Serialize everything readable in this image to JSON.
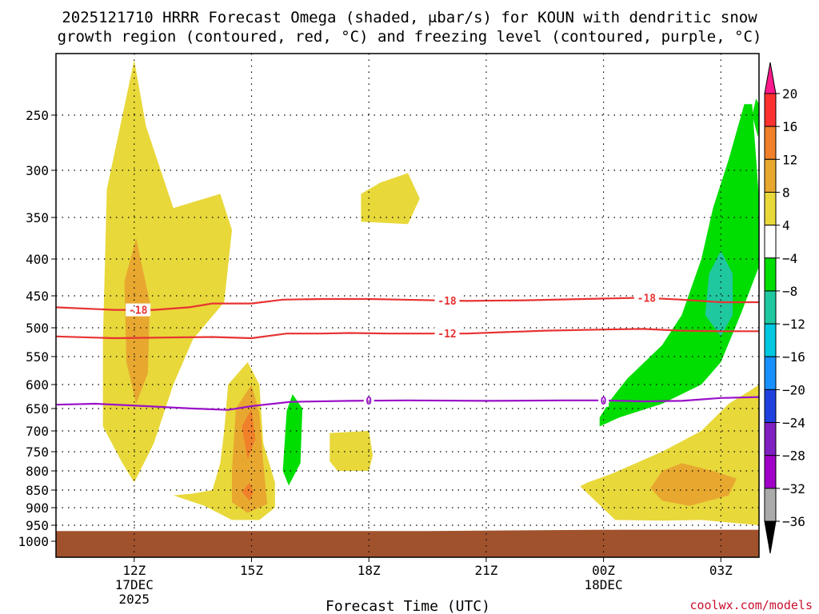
{
  "chart_data": {
    "type": "heatmap",
    "title_line1": "2025121710 HRRR Forecast Omega (shaded, μbar/s) for KOUN with dendritic snow",
    "title_line2": "growth region (contoured, red, °C) and freezing level (contoured, purple, °C)",
    "xlabel": "Forecast Time (UTC)",
    "credit": "coolwx.com/models",
    "x_ticks": [
      {
        "hour": 12,
        "lines": [
          "12Z",
          "17DEC",
          "2025"
        ]
      },
      {
        "hour": 15,
        "lines": [
          "15Z"
        ]
      },
      {
        "hour": 18,
        "lines": [
          "18Z"
        ]
      },
      {
        "hour": 21,
        "lines": [
          "21Z"
        ]
      },
      {
        "hour": 24,
        "lines": [
          "00Z",
          "18DEC"
        ]
      },
      {
        "hour": 27,
        "lines": [
          "03Z"
        ]
      }
    ],
    "x_range": [
      10,
      28
    ],
    "y_levels": [
      250,
      300,
      350,
      400,
      450,
      500,
      550,
      600,
      650,
      700,
      750,
      800,
      850,
      900,
      950,
      1000
    ],
    "colorbar": {
      "labels": [
        "20",
        "16",
        "12",
        "8",
        "4",
        "−4",
        "−8",
        "−12",
        "−16",
        "−20",
        "−24",
        "−28",
        "−32",
        "−36"
      ],
      "colors": [
        "#ff1a8c",
        "#ff3030",
        "#f0802a",
        "#e8a830",
        "#e8d83a",
        "#ffffff",
        "#00dd00",
        "#20c8a0",
        "#00c8e0",
        "#1890ff",
        "#2040e0",
        "#8020c0",
        "#a000c8",
        "#aaaaaa",
        "#000000"
      ]
    },
    "omega_regions": [
      {
        "name": "yellow-12z-upper",
        "bin": "4 to 8",
        "color": "#e8d83a",
        "points": [
          [
            11.2,
            690
          ],
          [
            11.7,
            780
          ],
          [
            12.0,
            830
          ],
          [
            12.5,
            730
          ],
          [
            13.0,
            600
          ],
          [
            13.5,
            520
          ],
          [
            14.3,
            460
          ],
          [
            14.5,
            365
          ],
          [
            14.2,
            325
          ],
          [
            13.0,
            340
          ],
          [
            12.3,
            260
          ],
          [
            12.0,
            195
          ],
          [
            11.3,
            320
          ],
          [
            11.2,
            520
          ]
        ]
      },
      {
        "name": "orange-12z-upper",
        "bin": "8 to 12",
        "color": "#e8a830",
        "points": [
          [
            11.75,
            430
          ],
          [
            11.8,
            560
          ],
          [
            12.05,
            640
          ],
          [
            12.35,
            580
          ],
          [
            12.4,
            460
          ],
          [
            12.05,
            375
          ]
        ]
      },
      {
        "name": "yellow-18z-upper",
        "bin": "4 to 8",
        "color": "#e8d83a",
        "points": [
          [
            17.8,
            325
          ],
          [
            17.8,
            355
          ],
          [
            19.0,
            358
          ],
          [
            19.3,
            330
          ],
          [
            19.0,
            303
          ],
          [
            18.3,
            313
          ]
        ]
      },
      {
        "name": "yellow-15z-low",
        "bin": "4 to 8",
        "color": "#e8d83a",
        "points": [
          [
            13.0,
            865
          ],
          [
            13.8,
            895
          ],
          [
            14.5,
            935
          ],
          [
            15.2,
            935
          ],
          [
            15.6,
            900
          ],
          [
            15.6,
            830
          ],
          [
            15.3,
            730
          ],
          [
            15.2,
            600
          ],
          [
            14.9,
            560
          ],
          [
            14.4,
            600
          ],
          [
            14.3,
            700
          ],
          [
            14.2,
            780
          ],
          [
            14.0,
            850
          ],
          [
            13.5,
            860
          ]
        ]
      },
      {
        "name": "orange-15z-low",
        "bin": "8 to 12",
        "color": "#e8a830",
        "points": [
          [
            14.5,
            885
          ],
          [
            14.9,
            915
          ],
          [
            15.4,
            890
          ],
          [
            15.3,
            780
          ],
          [
            15.2,
            660
          ],
          [
            15.0,
            600
          ],
          [
            14.6,
            650
          ],
          [
            14.5,
            800
          ]
        ]
      },
      {
        "name": "deep-orange-15z-core",
        "bin": "12 to 16",
        "color": "#f0802a",
        "points": [
          [
            14.75,
            690
          ],
          [
            14.9,
            770
          ],
          [
            15.1,
            720
          ],
          [
            15.0,
            650
          ]
        ]
      },
      {
        "name": "deep-orange-15z-lower",
        "bin": "12 to 16",
        "color": "#f0802a",
        "points": [
          [
            14.75,
            855
          ],
          [
            14.95,
            880
          ],
          [
            15.05,
            855
          ],
          [
            14.95,
            830
          ]
        ]
      },
      {
        "name": "green-16z",
        "bin": "-8 to -4",
        "color": "#00dd00",
        "points": [
          [
            15.9,
            655
          ],
          [
            15.8,
            800
          ],
          [
            15.95,
            838
          ],
          [
            16.25,
            780
          ],
          [
            16.3,
            650
          ],
          [
            16.05,
            620
          ]
        ]
      },
      {
        "name": "yellow-17z-low",
        "bin": "4 to 8",
        "color": "#e8d83a",
        "points": [
          [
            17.0,
            705
          ],
          [
            17.0,
            775
          ],
          [
            17.2,
            800
          ],
          [
            18.0,
            800
          ],
          [
            18.1,
            760
          ],
          [
            18.0,
            700
          ]
        ]
      },
      {
        "name": "yellow-right-low",
        "bin": "4 to 8",
        "color": "#e8d83a",
        "points": [
          [
            23.4,
            840
          ],
          [
            24.3,
            935
          ],
          [
            25.5,
            937
          ],
          [
            26.5,
            935
          ],
          [
            28.5,
            950
          ],
          [
            28.5,
            600
          ],
          [
            27.8,
            610
          ],
          [
            27.2,
            640
          ],
          [
            26.5,
            700
          ],
          [
            25.5,
            750
          ],
          [
            24.2,
            808
          ],
          [
            23.6,
            830
          ]
        ]
      },
      {
        "name": "orange-right-low",
        "bin": "8 to 12",
        "color": "#e8a830",
        "points": [
          [
            25.2,
            845
          ],
          [
            25.5,
            880
          ],
          [
            26.2,
            895
          ],
          [
            27.2,
            865
          ],
          [
            27.4,
            820
          ],
          [
            26.8,
            800
          ],
          [
            26.0,
            780
          ],
          [
            25.5,
            800
          ]
        ]
      },
      {
        "name": "green-right-upper",
        "bin": "-8 to -4",
        "color": "#00dd00",
        "points": [
          [
            23.9,
            690
          ],
          [
            24.4,
            670
          ],
          [
            25.5,
            640
          ],
          [
            26.5,
            600
          ],
          [
            27.0,
            560
          ],
          [
            27.5,
            480
          ],
          [
            28.0,
            410
          ],
          [
            28.5,
            400
          ],
          [
            28.5,
            330
          ],
          [
            27.8,
            240
          ],
          [
            27.6,
            240
          ],
          [
            27.2,
            290
          ],
          [
            26.8,
            340
          ],
          [
            26.5,
            400
          ],
          [
            26.0,
            480
          ],
          [
            25.5,
            530
          ],
          [
            24.6,
            590
          ],
          [
            24.2,
            630
          ],
          [
            23.9,
            670
          ]
        ]
      },
      {
        "name": "teal-right-upper",
        "bin": "-12 to -8",
        "color": "#20c8a0",
        "points": [
          [
            26.6,
            480
          ],
          [
            27.0,
            515
          ],
          [
            27.3,
            480
          ],
          [
            27.3,
            420
          ],
          [
            27.0,
            390
          ],
          [
            26.7,
            420
          ]
        ]
      },
      {
        "name": "green-right-top",
        "bin": "-8 to -4",
        "color": "#00dd00",
        "points": [
          [
            27.8,
            250
          ],
          [
            27.95,
            270
          ],
          [
            28.1,
            260
          ],
          [
            28.1,
            240
          ],
          [
            27.9,
            235
          ]
        ]
      }
    ],
    "contours": [
      {
        "name": "minus-18-line",
        "label": "-18",
        "color": "#e83232",
        "points": [
          [
            10,
            468
          ],
          [
            11.5,
            472
          ],
          [
            12.5,
            472
          ],
          [
            13.4,
            468
          ],
          [
            14.0,
            462
          ],
          [
            15.0,
            462
          ],
          [
            15.8,
            456
          ],
          [
            16.8,
            455
          ],
          [
            18.0,
            455
          ],
          [
            20.5,
            458
          ],
          [
            22.0,
            457
          ],
          [
            23.5,
            455
          ],
          [
            25.0,
            453
          ],
          [
            26.0,
            456
          ],
          [
            27.0,
            460
          ],
          [
            28.5,
            460
          ]
        ],
        "label_at": [
          12.1,
          20.0,
          25.1
        ]
      },
      {
        "name": "minus-12-line",
        "label": "-12",
        "color": "#e83232",
        "points": [
          [
            10,
            515
          ],
          [
            11.5,
            518
          ],
          [
            12.8,
            517
          ],
          [
            14.0,
            516
          ],
          [
            15.0,
            518
          ],
          [
            15.9,
            510
          ],
          [
            16.8,
            510
          ],
          [
            17.5,
            509
          ],
          [
            18.5,
            510
          ],
          [
            20.5,
            510
          ],
          [
            22.5,
            505
          ],
          [
            24.0,
            503
          ],
          [
            25.0,
            502
          ],
          [
            26.0,
            505
          ],
          [
            27.0,
            506
          ],
          [
            28.5,
            506
          ]
        ],
        "label_at": [
          20.0
        ]
      },
      {
        "name": "zero-freezing-line",
        "label": "0",
        "color": "#9a10c8",
        "points": [
          [
            10,
            642
          ],
          [
            11,
            640
          ],
          [
            12.3,
            645
          ],
          [
            13.5,
            650
          ],
          [
            14.4,
            653
          ],
          [
            15.0,
            645
          ],
          [
            16.0,
            636
          ],
          [
            17.5,
            634
          ],
          [
            19.0,
            633
          ],
          [
            21.0,
            634
          ],
          [
            23.0,
            633
          ],
          [
            24.0,
            633
          ],
          [
            25.0,
            635
          ],
          [
            26.0,
            634
          ],
          [
            27.0,
            628
          ],
          [
            28.5,
            626
          ]
        ],
        "label_at": [
          18.0,
          24.0
        ]
      }
    ],
    "terrain_color": "#a0522d"
  }
}
